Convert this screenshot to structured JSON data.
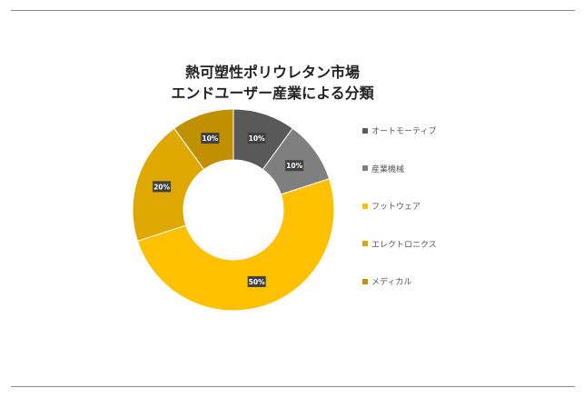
{
  "chart_data": {
    "type": "pie",
    "donut": true,
    "title_lines": [
      "熱可塑性ポリウレタン市場",
      "エンドユーザー産業による分類"
    ],
    "categories": [
      "オートモーティブ",
      "産業機械",
      "フットウェア",
      "エレクトロニクス",
      "メディカル"
    ],
    "values": [
      10,
      10,
      50,
      20,
      10
    ],
    "data_labels": [
      "10%",
      "10%",
      "50%",
      "20%",
      "10%"
    ],
    "colors": [
      "#595959",
      "#7f7f7f",
      "#ffc000",
      "#dea800",
      "#c09000"
    ],
    "legend_position": "right"
  }
}
